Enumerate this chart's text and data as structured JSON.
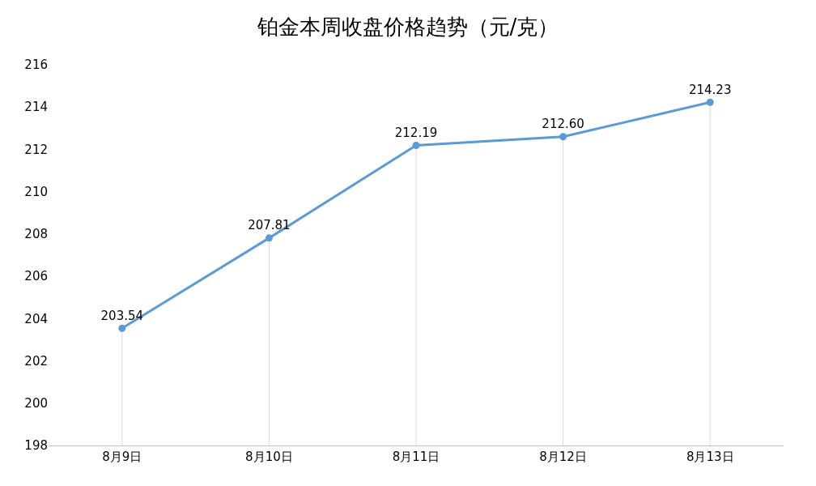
{
  "chart_data": {
    "type": "line",
    "title": "铂金本周收盘价格趋势（元/克）",
    "categories": [
      "8月9日",
      "8月10日",
      "8月11日",
      "8月12日",
      "8月13日"
    ],
    "series": [
      {
        "color": "#5b9bd5",
        "values": [
          203.54,
          207.81,
          212.19,
          212.6,
          214.23
        ]
      }
    ],
    "value_labels": [
      "203.54",
      "207.81",
      "212.19",
      "212.60",
      "214.23"
    ],
    "ylim": [
      198,
      216
    ],
    "yticks": [
      198,
      200,
      202,
      204,
      206,
      208,
      210,
      212,
      214,
      216
    ],
    "grid": "x",
    "marker": "circle",
    "line_style": "solid"
  }
}
